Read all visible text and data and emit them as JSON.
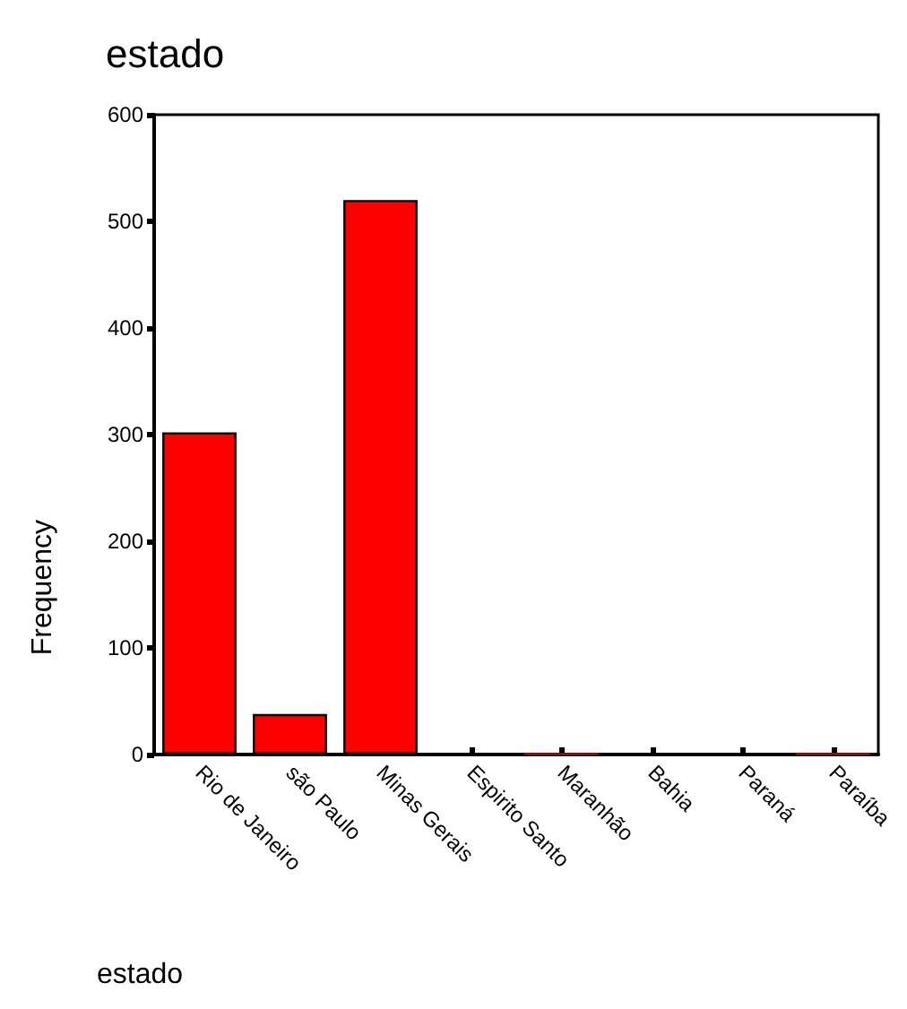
{
  "chart_data": {
    "type": "bar",
    "title": "estado",
    "xlabel": "estado",
    "ylabel": "Frequency",
    "categories": [
      "Rio de Janeiro",
      "são Paulo",
      "Minas Gerais",
      "Espirito Santo",
      "Maranhão",
      "Bahia",
      "Paraná",
      "Paraíba"
    ],
    "values": [
      302,
      38,
      520,
      0,
      1,
      0,
      0,
      1
    ],
    "color": "#ff0000",
    "ylim": [
      0,
      600
    ],
    "yticks": [
      0,
      100,
      200,
      300,
      400,
      500,
      600
    ],
    "grid": false
  }
}
